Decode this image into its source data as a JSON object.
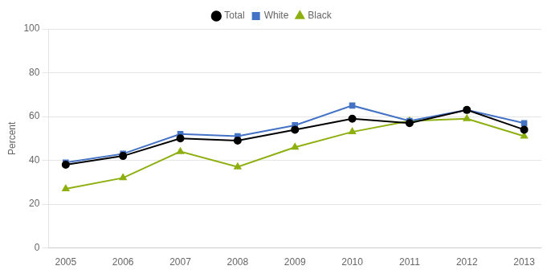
{
  "chart_data": {
    "type": "line",
    "x": [
      2005,
      2006,
      2007,
      2008,
      2009,
      2010,
      2011,
      2012,
      2013
    ],
    "xlim": [
      2004.7,
      2013.3
    ],
    "xticks": [
      2005,
      2006,
      2007,
      2008,
      2009,
      2010,
      2011,
      2012,
      2013
    ],
    "series": [
      {
        "name": "Total",
        "color": "#000000",
        "marker": "circle",
        "values": [
          38,
          42,
          50,
          49,
          54,
          59,
          57,
          63,
          54
        ]
      },
      {
        "name": "White",
        "color": "#4472C4",
        "marker": "square",
        "values": [
          39,
          43,
          52,
          51,
          56,
          65,
          58,
          63,
          57
        ]
      },
      {
        "name": "Black",
        "color": "#8DB010",
        "marker": "triangle",
        "values": [
          27,
          32,
          44,
          37,
          46,
          53,
          58,
          59,
          51
        ]
      }
    ],
    "ylabel": "Percent",
    "ylim": [
      0,
      100
    ],
    "yticks": [
      0,
      20,
      40,
      60,
      80,
      100
    ],
    "grid": "y",
    "legend": "top"
  }
}
